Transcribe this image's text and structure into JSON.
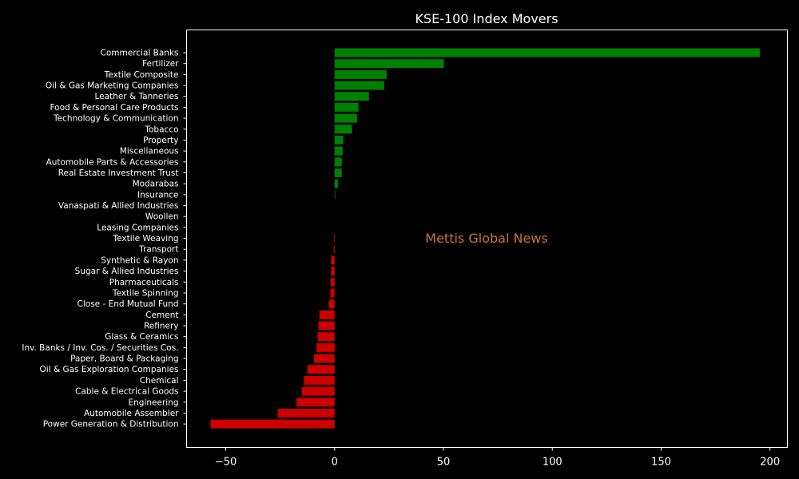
{
  "chart_data": {
    "type": "bar",
    "orientation": "horizontal",
    "title": "KSE-100 Index Movers",
    "watermark": "Mettis Global News",
    "xlabel": "",
    "ylabel": "",
    "xlim": [
      -68,
      208
    ],
    "xticks": [
      -50,
      0,
      50,
      100,
      150,
      200
    ],
    "xtick_labels": [
      "−50",
      "0",
      "50",
      "100",
      "150",
      "200"
    ],
    "grid": false,
    "colors": {
      "positive": "#008000",
      "negative": "#cc0000",
      "background": "#000000",
      "text": "#ffffff",
      "watermark": "#c87533"
    },
    "categories": [
      "Commercial Banks",
      "Fertilizer",
      "Textile Composite",
      "Oil & Gas Marketing Companies",
      "Leather & Tanneries",
      "Food & Personal Care Products",
      "Technology & Communication",
      "Tobacco",
      "Property",
      "Miscellaneous",
      "Automobile Parts & Accessories",
      "Real Estate Investment Trust",
      "Modarabas",
      "Insurance",
      "Vanaspati & Allied Industries",
      "Woollen",
      "Leasing Companies",
      "Textile Weaving",
      "Transport",
      "Synthetic & Rayon",
      "Sugar & Allied Industries",
      "Pharmaceuticals",
      "Textile Spinning",
      "Close - End Mutual Fund",
      "Cement",
      "Refinery",
      "Glass & Ceramics",
      "Inv. Banks / Inv. Cos. / Securities Cos.",
      "Paper, Board & Packaging",
      "Oil & Gas Exploration Companies",
      "Chemical",
      "Cable & Electrical Goods",
      "Engineering",
      "Automobile Assembler",
      "Power Generation & Distribution"
    ],
    "values": [
      195.3,
      50.2,
      23.9,
      22.8,
      15.8,
      11.0,
      10.3,
      8.0,
      4.0,
      3.7,
      3.3,
      3.3,
      1.5,
      0.3,
      0.0,
      0.0,
      0.0,
      -0.3,
      -0.4,
      -1.6,
      -1.6,
      -1.8,
      -1.9,
      -2.6,
      -7.0,
      -7.4,
      -7.8,
      -8.3,
      -9.5,
      -12.5,
      -14.1,
      -15.0,
      -17.5,
      -26.1,
      -57.0
    ]
  }
}
